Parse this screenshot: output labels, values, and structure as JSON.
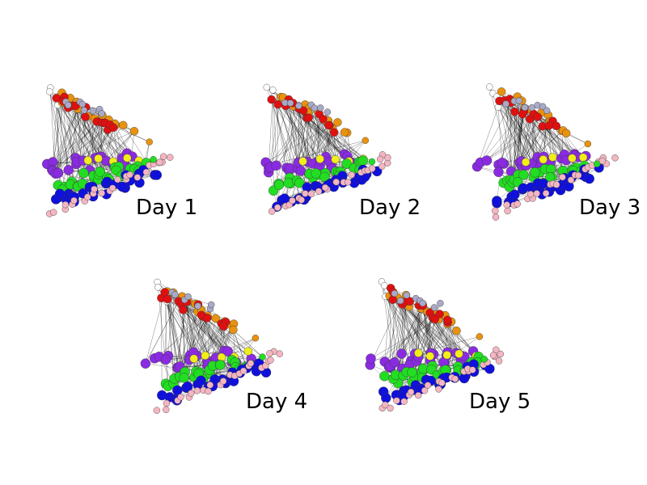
{
  "panels": [
    {
      "label": "Day 1"
    },
    {
      "label": "Day 2"
    },
    {
      "label": "Day 3"
    },
    {
      "label": "Day 4"
    },
    {
      "label": "Day 5"
    }
  ],
  "cluster_colors": {
    "orange": "#e8920f",
    "red": "#e01010",
    "purple": "#8a2be2",
    "green": "#22dd22",
    "blue": "#1010dd",
    "pink": "#f4b6c2",
    "yellow": "#f2ee18",
    "white": "#ffffff",
    "grey": "#a9a9c8"
  },
  "edge_color": "#000000"
}
